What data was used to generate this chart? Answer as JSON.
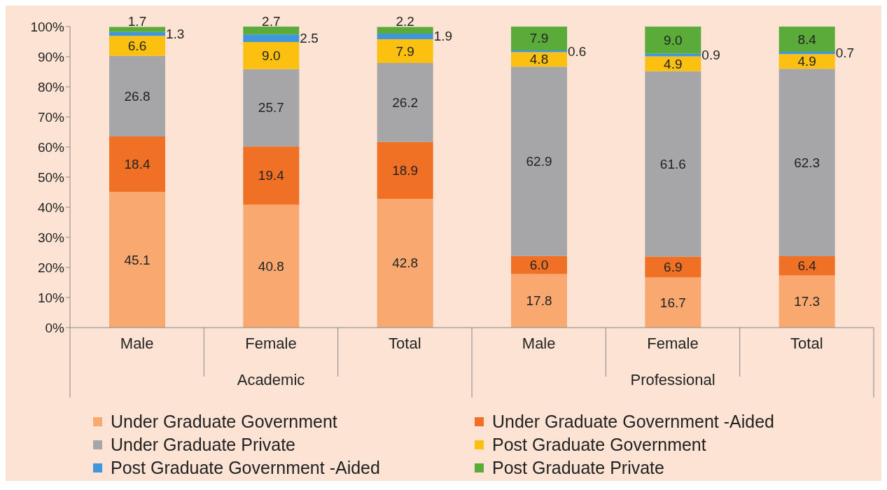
{
  "chart_data": {
    "type": "bar",
    "stacked": true,
    "data_labels": true,
    "legend": "bottom",
    "grid": false,
    "categories": [
      "Male",
      "Female",
      "Total",
      "Male",
      "Female",
      "Total"
    ],
    "annotations": [
      "Academic",
      "Professional"
    ],
    "ylim": [
      0,
      100
    ],
    "yticks": [
      {
        "value": 0,
        "label": "0%"
      },
      {
        "value": 10,
        "label": "10%"
      },
      {
        "value": 20,
        "label": "20%"
      },
      {
        "value": 30,
        "label": "30%"
      },
      {
        "value": 40,
        "label": "40%"
      },
      {
        "value": 50,
        "label": "50%"
      },
      {
        "value": 60,
        "label": "60%"
      },
      {
        "value": 70,
        "label": "70%"
      },
      {
        "value": 80,
        "label": "80%"
      },
      {
        "value": 90,
        "label": "90%"
      },
      {
        "value": 100,
        "label": "100%"
      }
    ],
    "series": [
      {
        "name": "Under Graduate Government",
        "color": "#f9a870",
        "values": [
          45.1,
          40.8,
          42.8,
          17.8,
          16.7,
          17.3
        ]
      },
      {
        "name": "Under Graduate Government -Aided",
        "color": "#f07025",
        "values": [
          18.4,
          19.4,
          18.9,
          6.0,
          6.9,
          6.4
        ],
        "value_labels": [
          "18.4",
          "19.4",
          "18.9",
          "6.0",
          "6.9",
          "6.4"
        ]
      },
      {
        "name": "Under Graduate Private",
        "color": "#a6a6a8",
        "values": [
          26.8,
          25.7,
          26.2,
          62.9,
          61.6,
          62.3
        ]
      },
      {
        "name": "Post Graduate Government",
        "color": "#fcc010",
        "values": [
          6.6,
          9.0,
          7.9,
          4.8,
          4.9,
          4.9
        ],
        "value_labels": [
          "6.6",
          "9.0",
          "7.9",
          "4.8",
          "4.9",
          "4.9"
        ]
      },
      {
        "name": "Post Graduate Government -Aided",
        "color": "#3f96dc",
        "values": [
          1.3,
          2.5,
          1.9,
          0.6,
          0.9,
          0.7
        ]
      },
      {
        "name": "Post Graduate Private",
        "color": "#5aab3a",
        "values": [
          1.7,
          2.7,
          2.2,
          7.9,
          9.0,
          8.4
        ],
        "value_labels": [
          "1.7",
          "2.7",
          "2.2",
          "7.9",
          "9.0",
          "8.4"
        ]
      }
    ]
  }
}
